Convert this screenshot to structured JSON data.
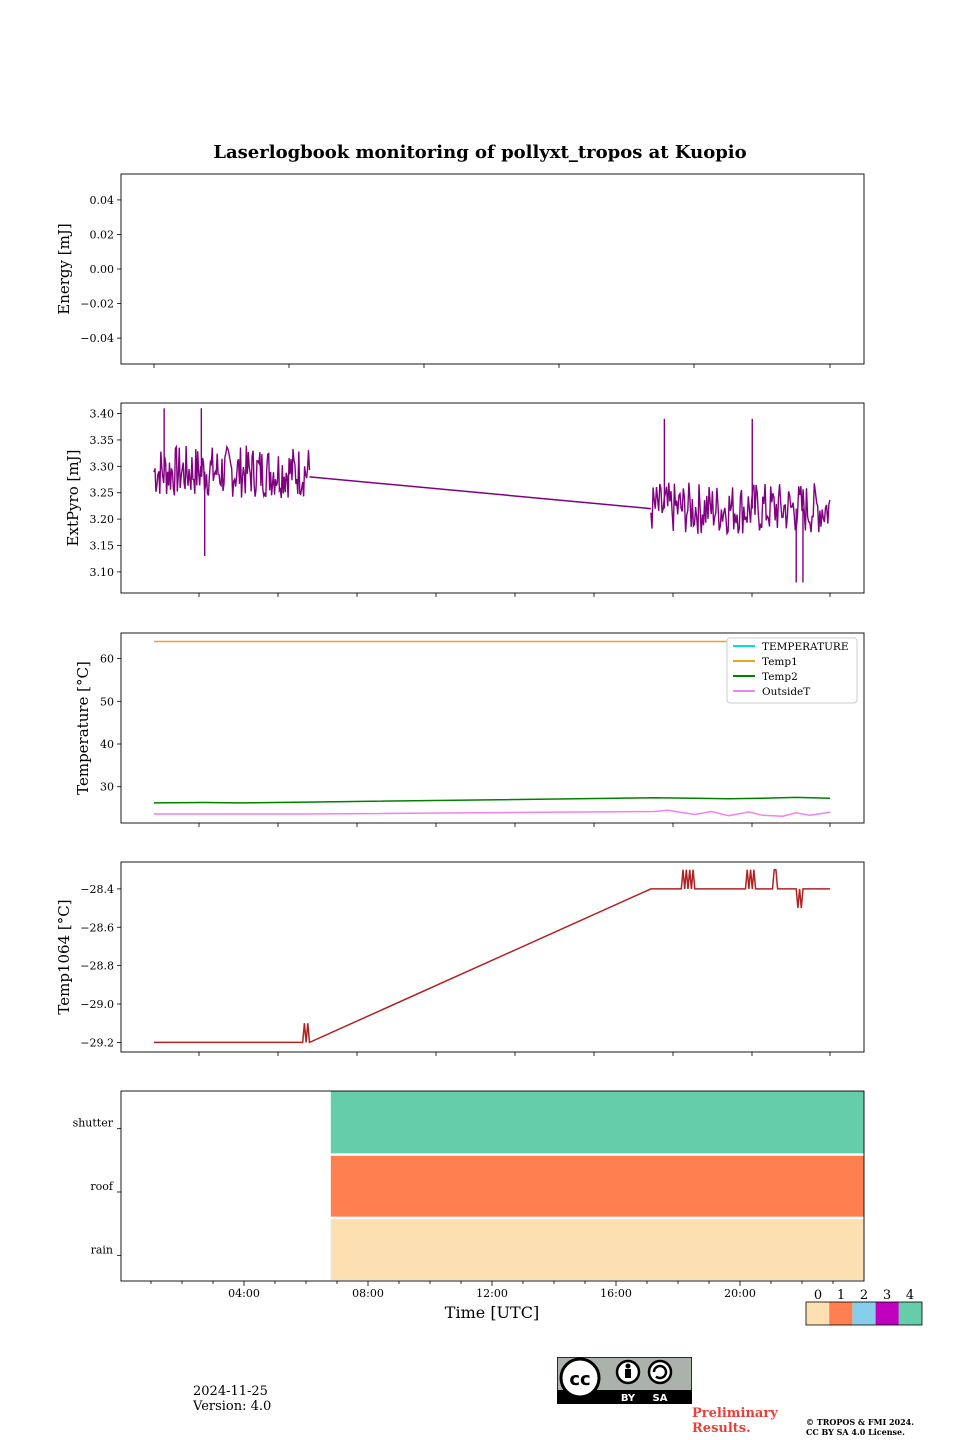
{
  "title": "Laserlogbook monitoring of pollyxt_tropos at Kuopio",
  "footer": {
    "date": "2024-11-25",
    "version": "Version: 4.0",
    "preliminary_line1": "Preliminary",
    "preliminary_line2": "Results.",
    "copyright_line1": "© TROPOS & FMI 2024.",
    "copyright_line2": "CC BY SA 4.0 License.",
    "cc_by": "BY",
    "cc_sa": "SA"
  },
  "chart_data": [
    {
      "type": "line",
      "ylabel": "Energy [mJ]",
      "ylim": [
        -0.055,
        0.055
      ],
      "yticks": [
        0.04,
        0.02,
        0.0,
        -0.02,
        -0.04
      ],
      "ytick_labels": [
        "0.04",
        "0.02",
        "0.00",
        "−0.02",
        "−0.04"
      ],
      "xlim": [
        0,
        24
      ],
      "series": []
    },
    {
      "type": "line",
      "ylabel": "ExtPyro [mJ]",
      "ylim": [
        3.06,
        3.42
      ],
      "yticks": [
        3.4,
        3.35,
        3.3,
        3.25,
        3.2,
        3.15,
        3.1
      ],
      "ytick_labels": [
        "3.40",
        "3.35",
        "3.30",
        "3.25",
        "3.20",
        "3.15",
        "3.10"
      ],
      "xlim": [
        0,
        24
      ],
      "series": [
        {
          "color": "#800080",
          "noisy_segments": [
            {
              "x": [
                0.0,
                4.6
              ],
              "mean": 3.29,
              "amp": 0.05,
              "spikes": [
                [
                  1.5,
                  3.13
                ],
                [
                  0.3,
                  3.41
                ],
                [
                  1.4,
                  3.41
                ]
              ]
            },
            {
              "x": [
                14.7,
                20.0
              ],
              "mean": 3.22,
              "amp": 0.05,
              "spikes": [
                [
                  15.1,
                  3.39
                ],
                [
                  19.0,
                  3.08
                ],
                [
                  19.2,
                  3.08
                ],
                [
                  17.7,
                  3.39
                ]
              ]
            }
          ],
          "x": [
            4.6,
            14.7
          ],
          "y": [
            3.28,
            3.22
          ]
        }
      ]
    },
    {
      "type": "line",
      "ylabel": "Temperature [°C]",
      "ylim": [
        21.5,
        66
      ],
      "yticks": [
        60,
        50,
        40,
        30
      ],
      "ytick_labels": [
        "60",
        "50",
        "40",
        "30"
      ],
      "xlim": [
        0,
        24
      ],
      "legend": "top-right",
      "series": [
        {
          "name": "TEMPERATURE",
          "color": "#00e0e0",
          "x": [],
          "y": []
        },
        {
          "name": "Temp1",
          "color": "#f0a020",
          "x": [
            0,
            20
          ],
          "y": [
            64,
            64
          ]
        },
        {
          "name": "Temp2",
          "color": "#008000",
          "x": [
            0,
            1.5,
            2.5,
            4.5,
            14.8,
            16,
            17,
            18,
            19,
            20
          ],
          "y": [
            26.2,
            26.3,
            26.2,
            26.4,
            27.4,
            27.3,
            27.2,
            27.3,
            27.5,
            27.3
          ]
        },
        {
          "name": "OutsideT",
          "color": "#ee82ee",
          "x": [
            0,
            4.5,
            14.8,
            15.2,
            16,
            16.5,
            17,
            17.6,
            18,
            18.6,
            19,
            19.4,
            20
          ],
          "y": [
            23.6,
            23.6,
            24.2,
            24.5,
            23.5,
            24.2,
            23.2,
            24.1,
            23.3,
            23.1,
            23.9,
            23.3,
            24.0
          ]
        }
      ]
    },
    {
      "type": "line",
      "ylabel": "Temp1064 [°C]",
      "ylim": [
        -29.25,
        -28.26
      ],
      "yticks": [
        -28.4,
        -28.6,
        -28.8,
        -29.0,
        -29.2
      ],
      "ytick_labels": [
        "−28.4",
        "−28.6",
        "−28.8",
        "−29.0",
        "−29.2"
      ],
      "xlim": [
        0,
        24
      ],
      "series": [
        {
          "color": "#b22222",
          "x": [
            0,
            4.4,
            4.45,
            4.5,
            4.55,
            4.6,
            14.7,
            15.6,
            15.65,
            15.7,
            15.75,
            15.8,
            15.85,
            15.9,
            15.95,
            16.0,
            17.5,
            17.55,
            17.6,
            17.65,
            17.7,
            17.75,
            17.8,
            18.3,
            18.35,
            18.4,
            18.45,
            19.0,
            19.05,
            19.1,
            19.15,
            19.2,
            19.25,
            20.0
          ],
          "y": [
            -29.2,
            -29.2,
            -29.1,
            -29.2,
            -29.1,
            -29.2,
            -28.4,
            -28.4,
            -28.3,
            -28.4,
            -28.3,
            -28.4,
            -28.3,
            -28.4,
            -28.3,
            -28.4,
            -28.4,
            -28.3,
            -28.4,
            -28.3,
            -28.4,
            -28.3,
            -28.4,
            -28.4,
            -28.3,
            -28.3,
            -28.4,
            -28.4,
            -28.5,
            -28.4,
            -28.5,
            -28.4,
            -28.4,
            -28.4
          ]
        }
      ]
    },
    {
      "type": "heatmap",
      "xlabel": "Time [UTC]",
      "xlim": [
        0,
        24
      ],
      "xticks": [
        4,
        8,
        12,
        16,
        20
      ],
      "xtick_labels": [
        "04:00",
        "08:00",
        "12:00",
        "16:00",
        "20:00"
      ],
      "rows": [
        "shutter",
        "roof",
        "rain"
      ],
      "segments": [
        {
          "row": "shutter",
          "x": [
            6.8,
            24
          ],
          "value": 4
        },
        {
          "row": "roof",
          "x": [
            6.8,
            24
          ],
          "value": 1
        },
        {
          "row": "rain",
          "x": [
            6.8,
            24
          ],
          "value": 0
        }
      ],
      "colorbar": {
        "labels": [
          "0",
          "1",
          "2",
          "3",
          "4"
        ],
        "colors": [
          "#fde0b2",
          "#ff7f50",
          "#87ceeb",
          "#bf00bf",
          "#66cdaa"
        ]
      }
    }
  ]
}
